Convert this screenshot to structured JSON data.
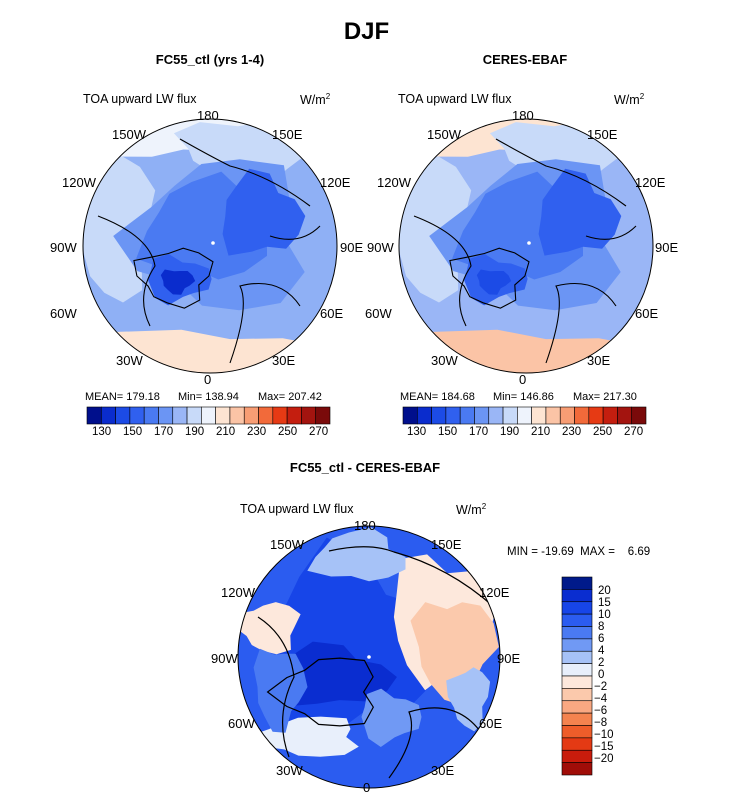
{
  "page": {
    "title": "DJF"
  },
  "panels": [
    {
      "subtitle": "FC55_ctl (yrs 1-4)",
      "variable": "TOA upward LW flux",
      "units_base": "W/m",
      "units_exp": "2",
      "stats": {
        "mean": "MEAN= 179.18",
        "min": "Min= 138.94",
        "max": "Max= 207.42"
      }
    },
    {
      "subtitle": "CERES-EBAF",
      "variable": "TOA upward LW flux",
      "units_base": "W/m",
      "units_exp": "2",
      "stats": {
        "mean": "MEAN= 184.68",
        "min": "Min= 146.86",
        "max": "Max= 217.30"
      }
    }
  ],
  "diff_panel": {
    "subtitle": "FC55_ctl - CERES-EBAF",
    "variable": "TOA upward LW flux",
    "units_base": "W/m",
    "units_exp": "2",
    "minmax": "MIN = -19.69  MAX =    6.69"
  },
  "longitude_labels": [
    "180",
    "150E",
    "120E",
    "90E",
    "60E",
    "30E",
    "0",
    "30W",
    "60W",
    "90W",
    "120W",
    "150W"
  ],
  "colorbar_flux": {
    "colors": [
      "#000f8c",
      "#0a2ccd",
      "#1c4be6",
      "#3060ef",
      "#4a7af2",
      "#6b95f4",
      "#9ab6f6",
      "#c8daf9",
      "#eef3fc",
      "#fde4d2",
      "#fbc4a6",
      "#f89d74",
      "#f26a3a",
      "#e63a14",
      "#c41e0f",
      "#a3140f",
      "#7a0a0a"
    ],
    "tick_labels": [
      "130",
      "150",
      "170",
      "190",
      "210",
      "230",
      "250",
      "270"
    ]
  },
  "colorbar_diff": {
    "colors": [
      "#001a8a",
      "#0a2dd0",
      "#1745e8",
      "#2b5cf0",
      "#4a7af2",
      "#7099f4",
      "#a6c2f7",
      "#e8effb",
      "#fde8dc",
      "#fbc9ac",
      "#f9a882",
      "#f4834f",
      "#ee5d2a",
      "#e43a14",
      "#c91c0c",
      "#a00d08"
    ],
    "tick_labels": [
      "20",
      "15",
      "10",
      "8",
      "6",
      "4",
      "2",
      "0",
      "−2",
      "−4",
      "−6",
      "−8",
      "−10",
      "−15",
      "−20"
    ]
  },
  "chart_data": [
    {
      "type": "heatmap",
      "projection": "north-polar-stereographic",
      "title": "FC55_ctl (yrs 1-4)",
      "variable": "TOA upward LW flux",
      "units": "W/m2",
      "mean": 179.18,
      "min": 138.94,
      "max": 207.42,
      "levels": [
        130,
        140,
        150,
        160,
        170,
        180,
        190,
        200,
        210,
        220,
        230,
        240,
        250,
        260,
        270
      ]
    },
    {
      "type": "heatmap",
      "projection": "north-polar-stereographic",
      "title": "CERES-EBAF",
      "variable": "TOA upward LW flux",
      "units": "W/m2",
      "mean": 184.68,
      "min": 146.86,
      "max": 217.3,
      "levels": [
        130,
        140,
        150,
        160,
        170,
        180,
        190,
        200,
        210,
        220,
        230,
        240,
        250,
        260,
        270
      ]
    },
    {
      "type": "heatmap",
      "projection": "north-polar-stereographic",
      "title": "FC55_ctl - CERES-EBAF",
      "variable": "TOA upward LW flux",
      "units": "W/m2",
      "min": -19.69,
      "max": 6.69,
      "levels": [
        -20,
        -15,
        -10,
        -8,
        -6,
        -4,
        -2,
        0,
        2,
        4,
        6,
        8,
        10,
        15,
        20
      ]
    }
  ]
}
